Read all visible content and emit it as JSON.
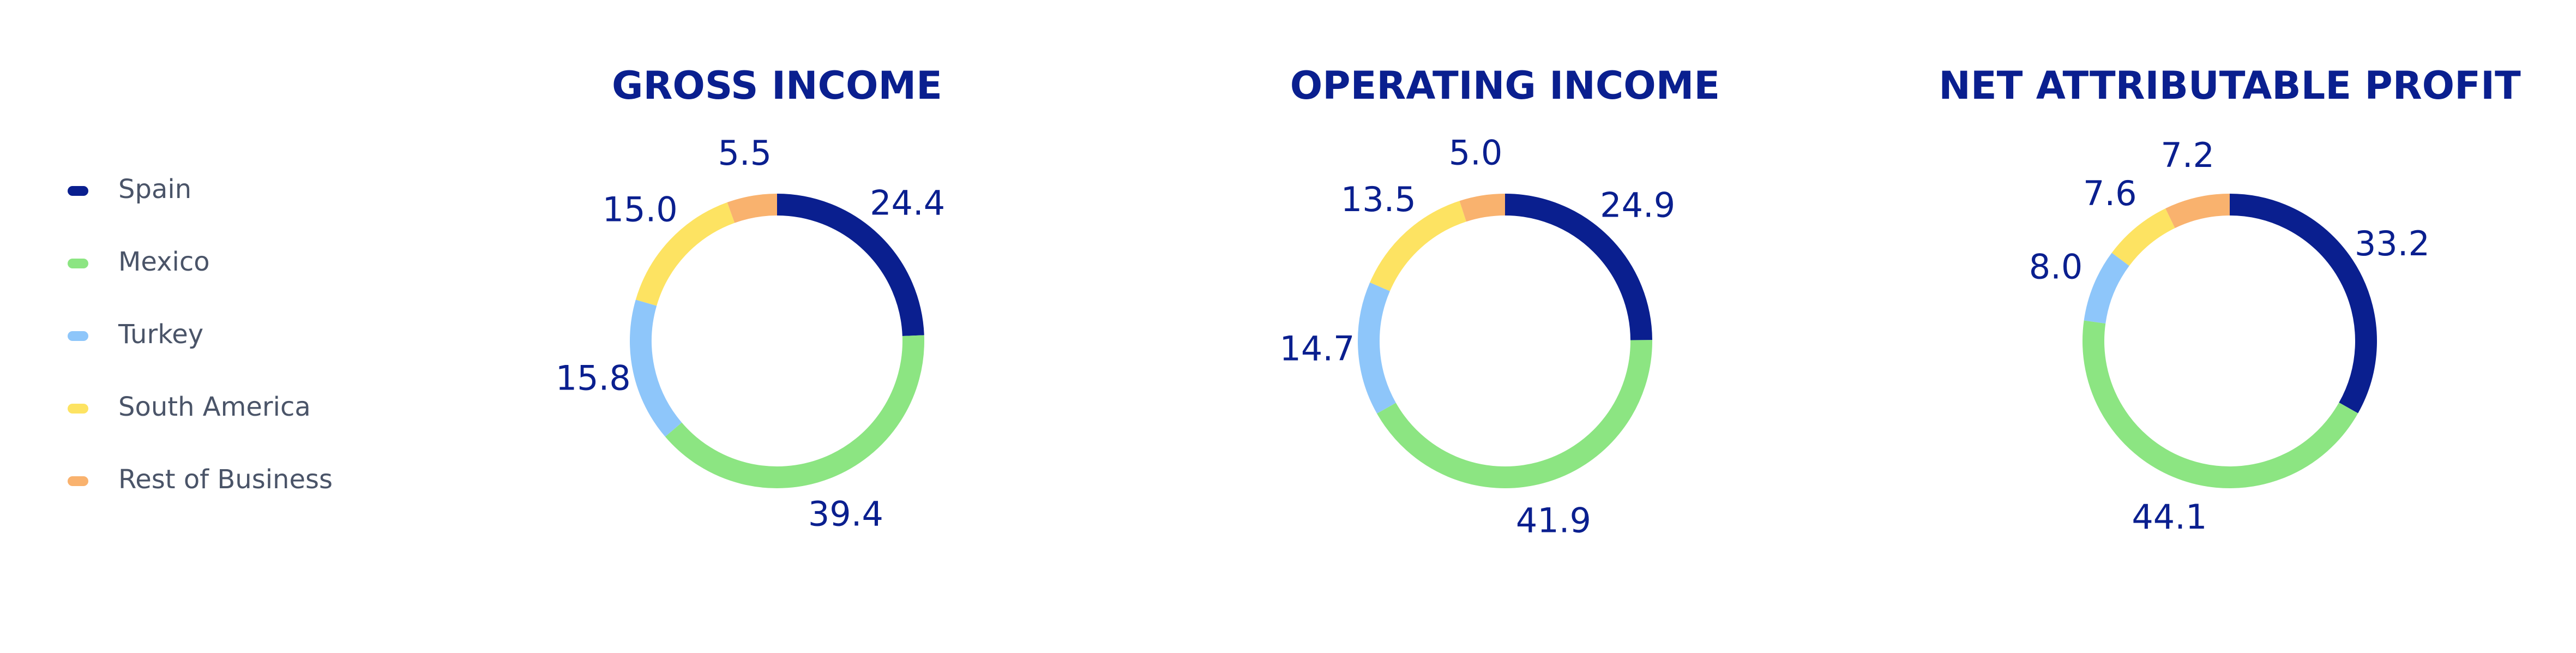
{
  "legend": {
    "categories": [
      "Spain",
      "Mexico",
      "Turkey",
      "South America",
      "Rest of Business"
    ],
    "colors": [
      "#0a1f8f",
      "#8ce582",
      "#8ec6fa",
      "#fde362",
      "#f9b26e"
    ]
  },
  "chart_data": [
    {
      "type": "pie",
      "title": "GROSS INCOME",
      "values": [
        24.4,
        39.4,
        15.8,
        15.0,
        5.5
      ],
      "value_labels": [
        "24.4",
        "39.4",
        "15.8",
        "15.0",
        "5.5"
      ]
    },
    {
      "type": "pie",
      "title": "OPERATING INCOME",
      "values": [
        24.9,
        41.9,
        14.7,
        13.5,
        5.0
      ],
      "value_labels": [
        "24.9",
        "41.9",
        "14.7",
        "13.5",
        "5.0"
      ]
    },
    {
      "type": "pie",
      "title": "NET ATTRIBUTABLE PROFIT",
      "values": [
        33.2,
        44.1,
        8.0,
        7.6,
        7.2
      ],
      "value_labels": [
        "33.2",
        "44.1",
        "8.0",
        "7.6",
        "7.2"
      ]
    }
  ]
}
